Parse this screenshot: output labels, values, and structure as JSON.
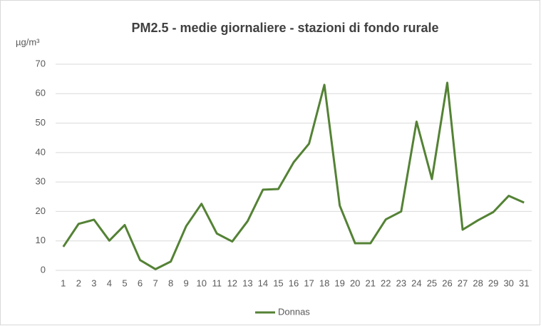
{
  "chart_data": {
    "type": "line",
    "title": "PM2.5 - medie giornaliere - stazioni di fondo rurale",
    "y_label": "µg/m³",
    "categories": [
      "1",
      "2",
      "3",
      "4",
      "5",
      "6",
      "7",
      "8",
      "9",
      "10",
      "11",
      "12",
      "13",
      "14",
      "15",
      "16",
      "17",
      "18",
      "19",
      "20",
      "21",
      "22",
      "23",
      "24",
      "25",
      "26",
      "27",
      "28",
      "29",
      "30",
      "31"
    ],
    "series": [
      {
        "name": "Donnas",
        "color": "#548235",
        "values": [
          8,
          15.8,
          17.2,
          10.1,
          15.4,
          3.5,
          0.4,
          3,
          15,
          22.6,
          12.5,
          9.8,
          16.7,
          27.4,
          27.6,
          36.7,
          43,
          63,
          22,
          9.2,
          9.2,
          17.3,
          20,
          50.5,
          31,
          63.7,
          13.8,
          17,
          19.8,
          25.3,
          23
        ]
      }
    ],
    "ylim": [
      0,
      70
    ],
    "yticks": [
      0,
      10,
      20,
      30,
      40,
      50,
      60,
      70
    ],
    "grid": true,
    "legend": "bottom"
  }
}
